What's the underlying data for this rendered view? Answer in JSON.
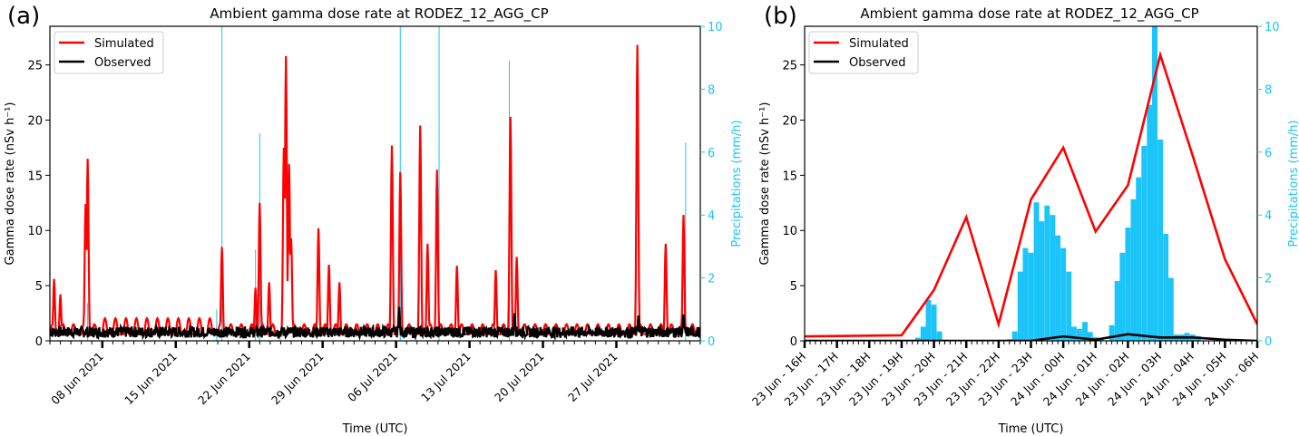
{
  "chart_data": [
    {
      "panel_label": "(a)",
      "type": "line",
      "title": "Ambient gamma dose rate at RODEZ_12_AGG_CP",
      "xlabel": "Time (UTC)",
      "ylabel": "Gamma dose rate (nSv h⁻¹)",
      "y2label": "Precipitations (mm/h)",
      "xlim_days": [
        0,
        62
      ],
      "x_start": "2021-06-03",
      "ylim": [
        0,
        28.5
      ],
      "y2lim": [
        0,
        10
      ],
      "yticks": [
        0,
        5,
        10,
        15,
        20,
        25
      ],
      "y2ticks": [
        0,
        2,
        4,
        6,
        8,
        10
      ],
      "xtick_labels": [
        "08 Jun 2021",
        "15 Jun 2021",
        "22 Jun 2021",
        "29 Jun 2021",
        "06 Jul 2021",
        "13 Jul 2021",
        "20 Jul 2021",
        "27 Jul 2021"
      ],
      "xtick_days": [
        5,
        12,
        19,
        26,
        33,
        40,
        47,
        54
      ],
      "legend": {
        "position": "top-left",
        "entries": [
          {
            "label": "Simulated",
            "color": "#ff0000"
          },
          {
            "label": "Observed",
            "color": "#000000"
          }
        ]
      },
      "simulated_peaks": [
        {
          "day": 0.4,
          "value": 5.6
        },
        {
          "day": 1.0,
          "value": 4.2
        },
        {
          "day": 3.4,
          "value": 12.4
        },
        {
          "day": 3.6,
          "value": 16.5
        },
        {
          "day": 16.4,
          "value": 8.5
        },
        {
          "day": 19.6,
          "value": 4.8
        },
        {
          "day": 20.0,
          "value": 12.5
        },
        {
          "day": 20.9,
          "value": 5.3
        },
        {
          "day": 22.3,
          "value": 17.5
        },
        {
          "day": 22.5,
          "value": 25.8
        },
        {
          "day": 22.8,
          "value": 16.0
        },
        {
          "day": 23.0,
          "value": 9.3
        },
        {
          "day": 25.6,
          "value": 10.2
        },
        {
          "day": 26.6,
          "value": 6.9
        },
        {
          "day": 27.6,
          "value": 5.3
        },
        {
          "day": 32.6,
          "value": 17.7
        },
        {
          "day": 33.4,
          "value": 15.3
        },
        {
          "day": 35.3,
          "value": 19.5
        },
        {
          "day": 36.0,
          "value": 8.8
        },
        {
          "day": 36.9,
          "value": 15.5
        },
        {
          "day": 38.8,
          "value": 6.8
        },
        {
          "day": 42.5,
          "value": 6.4
        },
        {
          "day": 43.9,
          "value": 20.3
        },
        {
          "day": 44.5,
          "value": 7.6
        },
        {
          "day": 56.0,
          "value": 26.8
        },
        {
          "day": 58.7,
          "value": 8.8
        },
        {
          "day": 60.4,
          "value": 11.4
        }
      ],
      "simulated_baseline": 1.5,
      "observed_baseline": 0.7,
      "observed_peaks": [
        {
          "day": 33.3,
          "value": 3.1
        },
        {
          "day": 44.3,
          "value": 2.5
        },
        {
          "day": 56.1,
          "value": 2.3
        },
        {
          "day": 60.4,
          "value": 2.4
        }
      ],
      "precipitation_spikes": [
        {
          "day": 16.4,
          "value": 10.0
        },
        {
          "day": 20.0,
          "value": 6.6
        },
        {
          "day": 19.6,
          "value": 2.9
        },
        {
          "day": 33.4,
          "value": 10.0
        },
        {
          "day": 37.1,
          "value": 10.0
        },
        {
          "day": 43.8,
          "value": 8.9
        },
        {
          "day": 60.6,
          "value": 6.3
        },
        {
          "day": 3.6,
          "value": 1.2
        },
        {
          "day": 15.9,
          "value": 1.0
        }
      ]
    },
    {
      "panel_label": "(b)",
      "type": "line",
      "title": "Ambient gamma dose rate at RODEZ_12_AGG_CP",
      "xlabel": "Time (UTC)",
      "ylabel": "Gamma dose rate (nSv h⁻¹)",
      "y2label": "Precipitations (mm/h)",
      "xlim_hours": [
        0,
        14
      ],
      "ylim": [
        0,
        28.5
      ],
      "y2lim": [
        0,
        10
      ],
      "yticks": [
        0,
        5,
        10,
        15,
        20,
        25
      ],
      "y2ticks": [
        0,
        2,
        4,
        6,
        8,
        10
      ],
      "xtick_labels": [
        "23 Jun - 16H",
        "23 Jun - 17H",
        "23 Jun - 18H",
        "23 Jun - 19H",
        "23 Jun - 20H",
        "23 Jun - 21H",
        "23 Jun - 22H",
        "23 Jun - 23H",
        "24 Jun - 00H",
        "24 Jun - 01H",
        "24 Jun - 02H",
        "24 Jun - 03H",
        "24 Jun - 04H",
        "24 Jun - 05H",
        "24 Jun - 06H"
      ],
      "legend": {
        "position": "top-left",
        "entries": [
          {
            "label": "Simulated",
            "color": "#ff0000"
          },
          {
            "label": "Observed",
            "color": "#000000"
          }
        ]
      },
      "series": [
        {
          "name": "Simulated",
          "color": "#ff0000",
          "x": [
            0,
            3,
            4,
            5,
            6,
            7,
            8,
            9,
            10,
            11,
            12,
            13,
            14
          ],
          "values": [
            0.4,
            0.5,
            4.6,
            11.2,
            1.5,
            12.8,
            17.5,
            9.9,
            14.1,
            25.9,
            16.8,
            7.4,
            1.5
          ]
        },
        {
          "name": "Observed",
          "color": "#000000",
          "x": [
            0,
            6,
            7,
            8,
            9,
            10,
            11,
            12,
            13,
            14
          ],
          "values": [
            0.0,
            0.0,
            0.0,
            0.4,
            0.1,
            0.6,
            0.3,
            0.3,
            0.1,
            0.0
          ]
        }
      ],
      "precipitation": {
        "color": "#1cc5f9",
        "bin_hours": 0.1667,
        "bars": [
          {
            "x": 3.5,
            "v": 0.1
          },
          {
            "x": 3.67,
            "v": 0.45
          },
          {
            "x": 3.83,
            "v": 1.3
          },
          {
            "x": 4.0,
            "v": 1.15
          },
          {
            "x": 4.17,
            "v": 0.3
          },
          {
            "x": 6.33,
            "v": 0.05
          },
          {
            "x": 6.5,
            "v": 0.3
          },
          {
            "x": 6.67,
            "v": 2.2
          },
          {
            "x": 6.83,
            "v": 2.95
          },
          {
            "x": 7.0,
            "v": 2.8
          },
          {
            "x": 7.17,
            "v": 4.4
          },
          {
            "x": 7.33,
            "v": 3.8
          },
          {
            "x": 7.5,
            "v": 4.3
          },
          {
            "x": 7.67,
            "v": 4.0
          },
          {
            "x": 7.83,
            "v": 3.35
          },
          {
            "x": 8.0,
            "v": 2.95
          },
          {
            "x": 8.17,
            "v": 2.2
          },
          {
            "x": 8.33,
            "v": 0.45
          },
          {
            "x": 8.5,
            "v": 0.38
          },
          {
            "x": 8.67,
            "v": 0.6
          },
          {
            "x": 8.83,
            "v": 0.28
          },
          {
            "x": 9.0,
            "v": 0.12
          },
          {
            "x": 9.17,
            "v": 0.05
          },
          {
            "x": 9.5,
            "v": 0.5
          },
          {
            "x": 9.67,
            "v": 1.9
          },
          {
            "x": 9.83,
            "v": 2.8
          },
          {
            "x": 10.0,
            "v": 3.6
          },
          {
            "x": 10.17,
            "v": 4.5
          },
          {
            "x": 10.33,
            "v": 5.2
          },
          {
            "x": 10.5,
            "v": 6.2
          },
          {
            "x": 10.67,
            "v": 7.5
          },
          {
            "x": 10.83,
            "v": 10.0
          },
          {
            "x": 11.0,
            "v": 6.4
          },
          {
            "x": 11.17,
            "v": 3.4
          },
          {
            "x": 11.33,
            "v": 2.0
          },
          {
            "x": 11.5,
            "v": 0.2
          },
          {
            "x": 11.67,
            "v": 0.2
          },
          {
            "x": 11.83,
            "v": 0.25
          },
          {
            "x": 12.0,
            "v": 0.2
          },
          {
            "x": 12.17,
            "v": 0.15
          }
        ]
      }
    }
  ]
}
